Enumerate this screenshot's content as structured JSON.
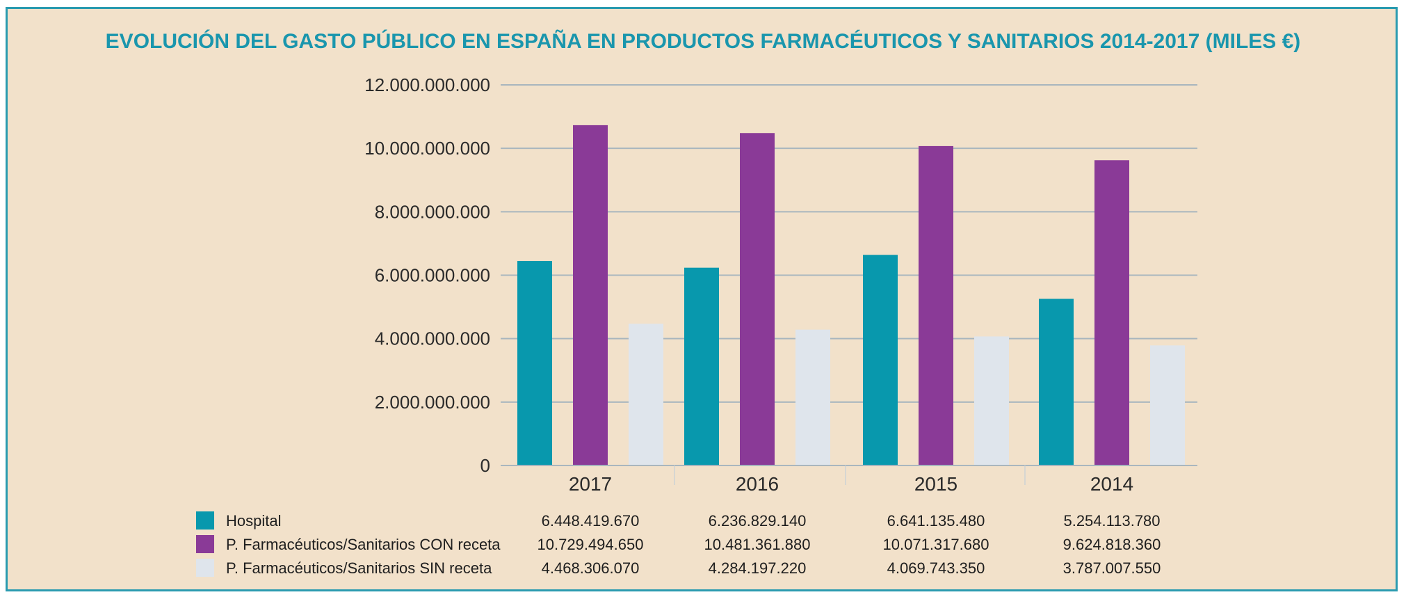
{
  "chart_data": {
    "type": "bar",
    "title": "EVOLUCIÓN DEL GASTO PÚBLICO EN ESPAÑA EN PRODUCTOS FARMACÉUTICOS Y SANITARIOS 2014-2017 (MILES €)",
    "categories": [
      "2017",
      "2016",
      "2015",
      "2014"
    ],
    "ylim": [
      0,
      12000000000
    ],
    "yticks": [
      0,
      2000000000,
      4000000000,
      6000000000,
      8000000000,
      10000000000,
      12000000000
    ],
    "ytick_labels": [
      "0",
      "2.000.000.000",
      "4.000.000.000",
      "6.000.000.000",
      "8.000.000.000",
      "10.000.000.000",
      "12.000.000.000"
    ],
    "grid": true,
    "legend_position": "bottom-left, as data table",
    "series": [
      {
        "name": "Hospital",
        "color": "#0898ad",
        "values": [
          6448419670,
          6236829140,
          6641135480,
          5254113780
        ],
        "value_labels": [
          "6.448.419.670",
          "6.236.829.140",
          "6.641.135.480",
          "5.254.113.780"
        ]
      },
      {
        "name": "P. Farmacéuticos/Sanitarios CON receta",
        "color": "#8a3a97",
        "values": [
          10729494650,
          10481361880,
          10071317680,
          9624818360
        ],
        "value_labels": [
          "10.729.494.650",
          "10.481.361.880",
          "10.071.317.680",
          "9.624.818.360"
        ]
      },
      {
        "name": "P. Farmacéuticos/Sanitarios SIN receta",
        "color": "#dfe5ec",
        "values": [
          4468306070,
          4284197220,
          4069743350,
          3787007550
        ],
        "value_labels": [
          "4.468.306.070",
          "4.284.197.220",
          "4.069.743.350",
          "3.787.007.550"
        ]
      }
    ]
  }
}
